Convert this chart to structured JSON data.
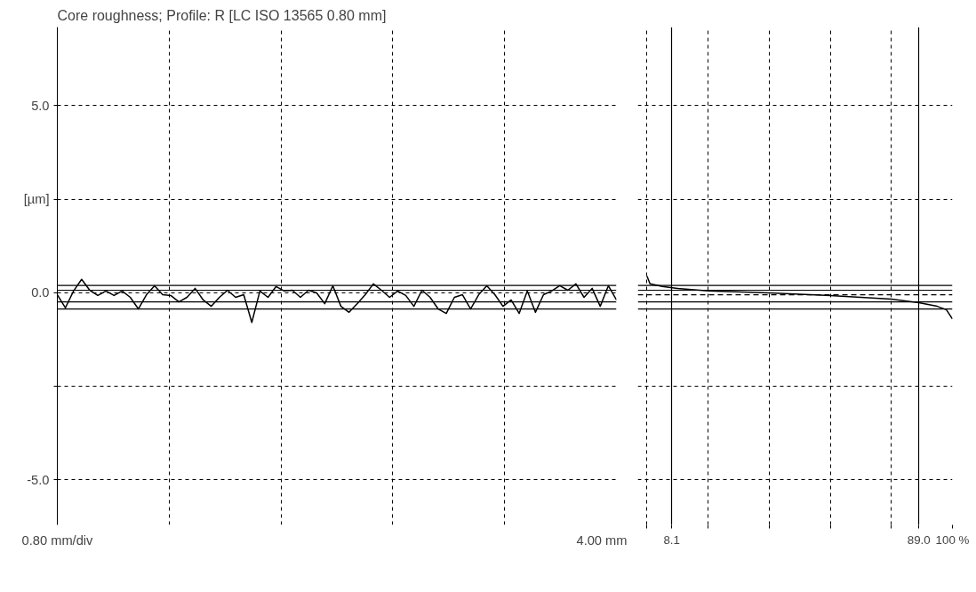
{
  "chart_data": [
    {
      "type": "line",
      "title": "Core roughness; Profile: R [LC ISO 13565 0.80 mm]",
      "ylabel": "[µm]",
      "categories": [
        null,
        null,
        null,
        null,
        null,
        null,
        null,
        null,
        null,
        null,
        null,
        null,
        null,
        null,
        null,
        null,
        null,
        null,
        null,
        null,
        null,
        null,
        null,
        null,
        null,
        null,
        null,
        null,
        null,
        null,
        null,
        null,
        null,
        null,
        null,
        null,
        null,
        null,
        null,
        null,
        null,
        null,
        null,
        null,
        null,
        null,
        null,
        null,
        null,
        null,
        null,
        null,
        null,
        null,
        null,
        null,
        null,
        null,
        null,
        null,
        null,
        null,
        null,
        null,
        null,
        null,
        null,
        null,
        null,
        null
      ],
      "series": [
        {
          "color": "#000000",
          "values": [
            -0.05,
            -0.4,
            0.05,
            0.36,
            0.07,
            -0.07,
            0.05,
            -0.07,
            0.05,
            -0.12,
            -0.43,
            -0.05,
            0.19,
            -0.05,
            -0.07,
            -0.24,
            -0.12,
            0.12,
            -0.19,
            -0.36,
            -0.12,
            0.07,
            -0.12,
            -0.05,
            -0.79,
            0.05,
            -0.12,
            0.17,
            0.05,
            0.07,
            -0.12,
            0.07,
            0.0,
            -0.29,
            0.19,
            -0.36,
            -0.52,
            -0.29,
            -0.05,
            0.24,
            0.07,
            -0.12,
            0.05,
            -0.07,
            -0.36,
            0.07,
            -0.12,
            -0.43,
            -0.55,
            -0.12,
            -0.05,
            -0.43,
            -0.05,
            0.19,
            -0.05,
            -0.36,
            -0.19,
            -0.55,
            0.05,
            -0.52,
            -0.05,
            0.05,
            0.19,
            0.07,
            0.24,
            -0.12,
            0.12,
            -0.36,
            0.19,
            -0.19
          ]
        }
      ],
      "ylim": [
        -6.2,
        7.1
      ],
      "yticks": [
        {
          "value": 5,
          "label": "5.0"
        },
        {
          "value": 2.5,
          "label": null
        },
        {
          "value": 0,
          "label": "0.0"
        },
        {
          "value": -2.5,
          "label": null
        },
        {
          "value": -5,
          "label": "-5.0"
        }
      ],
      "grid": true,
      "line_style": "solid",
      "annotations": [
        "0.80 mm/div",
        "4.00 mm"
      ],
      "ref_lines": [
        {
          "axis": "y",
          "value": 0.2
        },
        {
          "axis": "y",
          "value": 0.07
        },
        {
          "axis": "y",
          "value": -0.24
        },
        {
          "axis": "y",
          "value": -0.43
        }
      ]
    },
    {
      "type": "line",
      "x": [
        0,
        1,
        5,
        10,
        20,
        40,
        60,
        80,
        89,
        95,
        98,
        100
      ],
      "series": [
        {
          "color": "#000000",
          "values": [
            0.45,
            0.24,
            0.17,
            0.12,
            0.05,
            0.0,
            -0.07,
            -0.17,
            -0.26,
            -0.36,
            -0.45,
            -0.7
          ]
        }
      ],
      "xlim": [
        -3,
        100
      ],
      "ylim": [
        -6.2,
        7.1
      ],
      "xticks": [
        {
          "value": 0,
          "label": null
        },
        {
          "value": 8.1,
          "label": "8.1"
        },
        {
          "value": 20,
          "label": null
        },
        {
          "value": 40,
          "label": null
        },
        {
          "value": 60,
          "label": null
        },
        {
          "value": 80,
          "label": null
        },
        {
          "value": 89.0,
          "label": "89.0"
        },
        {
          "value": 100,
          "label": "100 %"
        }
      ],
      "yticks": [
        {
          "value": 5,
          "label": null
        },
        {
          "value": 2.5,
          "label": null
        },
        {
          "value": -2.5,
          "label": null
        },
        {
          "value": -5,
          "label": null
        }
      ],
      "grid": true,
      "tick_labels": "x",
      "line_style": "solid",
      "ref_lines": [
        {
          "axis": "y",
          "value": 0.2
        },
        {
          "axis": "y",
          "value": 0.07
        },
        {
          "axis": "y",
          "value": -0.24
        },
        {
          "axis": "y",
          "value": -0.43
        },
        {
          "axis": "y",
          "value": -0.05,
          "line_style": "dashed"
        }
      ]
    }
  ]
}
